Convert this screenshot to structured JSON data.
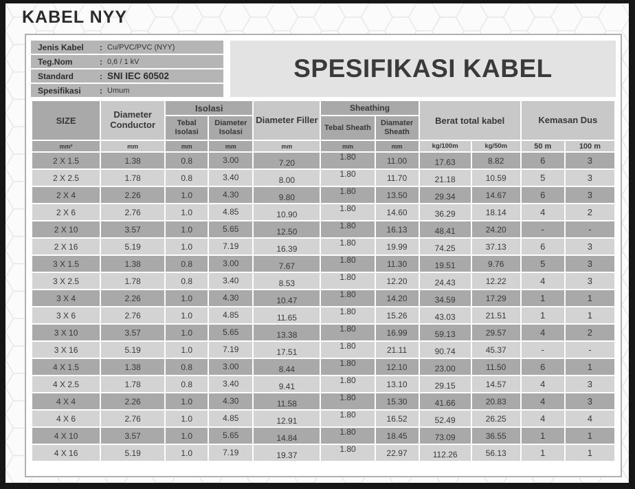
{
  "page": {
    "title": "KABEL NYY"
  },
  "header": {
    "info": [
      {
        "label": "Jenis Kabel",
        "colon": ":",
        "value": "Cu/PVC/PVC (NYY)"
      },
      {
        "label": "Teg.Nom",
        "colon": ":",
        "value": "0,6 / 1 kV"
      },
      {
        "label": "Standard",
        "colon": ":",
        "value": "SNI IEC 60502"
      },
      {
        "label": "Spesifikasi",
        "colon": ":",
        "value": "Umum"
      }
    ],
    "banner": "SPESIFIKASI KABEL"
  },
  "colors": {
    "row_dark": "#a9a9a9",
    "row_light": "#d3d3d3",
    "header_light": "#c8c8c8",
    "info_bar": "#b5b5b5",
    "banner_bg": "#e3e3e3",
    "frame": "#161616"
  },
  "table": {
    "header": {
      "size": "SIZE",
      "diameter_conductor": "Diameter Conductor",
      "isolasi_group": "Isolasi",
      "tebal_isolasi": "Tebal Isolasi",
      "diameter_isolasi": "Diameter Isolasi",
      "diameter_filler": "Diameter Filler",
      "sheathing_group": "Sheathing",
      "tebal_sheath": "Tebal Sheath",
      "diamater_sheath": "Diamater Sheath",
      "berat_total": "Berat total kabel",
      "kemasan_dus": "Kemasan Dus"
    },
    "units": [
      "mm²",
      "mm",
      "mm",
      "mm",
      "mm",
      "mm",
      "mm",
      "kg/100m",
      "kg/50m",
      "50 m",
      "100 m"
    ],
    "rows": [
      [
        "2 X 1.5",
        "1.38",
        "0.8",
        "3.00",
        "7.20",
        "1.80",
        "11.00",
        "17.63",
        "8.82",
        "6",
        "3"
      ],
      [
        "2 X 2.5",
        "1.78",
        "0.8",
        "3.40",
        "8.00",
        "1.80",
        "11.70",
        "21.18",
        "10.59",
        "5",
        "3"
      ],
      [
        "2 X 4",
        "2.26",
        "1.0",
        "4.30",
        "9.80",
        "1.80",
        "13.50",
        "29.34",
        "14.67",
        "6",
        "3"
      ],
      [
        "2 X 6",
        "2.76",
        "1.0",
        "4.85",
        "10.90",
        "1.80",
        "14.60",
        "36.29",
        "18.14",
        "4",
        "2"
      ],
      [
        "2 X 10",
        "3.57",
        "1.0",
        "5.65",
        "12.50",
        "1.80",
        "16.13",
        "48.41",
        "24.20",
        "-",
        "-"
      ],
      [
        "2 X 16",
        "5.19",
        "1.0",
        "7.19",
        "16.39",
        "1.80",
        "19.99",
        "74.25",
        "37.13",
        "6",
        "3"
      ],
      [
        "3 X 1.5",
        "1.38",
        "0.8",
        "3.00",
        "7.67",
        "1.80",
        "11.30",
        "19.51",
        "9.76",
        "5",
        "3"
      ],
      [
        "3 X 2.5",
        "1.78",
        "0.8",
        "3.40",
        "8.53",
        "1.80",
        "12.20",
        "24.43",
        "12.22",
        "4",
        "3"
      ],
      [
        "3 X 4",
        "2.26",
        "1.0",
        "4.30",
        "10.47",
        "1.80",
        "14.20",
        "34.59",
        "17.29",
        "1",
        "1"
      ],
      [
        "3 X 6",
        "2.76",
        "1.0",
        "4.85",
        "11.65",
        "1.80",
        "15.26",
        "43.03",
        "21.51",
        "1",
        "1"
      ],
      [
        "3 X 10",
        "3.57",
        "1.0",
        "5.65",
        "13.38",
        "1.80",
        "16.99",
        "59.13",
        "29.57",
        "4",
        "2"
      ],
      [
        "3 X 16",
        "5.19",
        "1.0",
        "7.19",
        "17.51",
        "1.80",
        "21.11",
        "90.74",
        "45.37",
        "-",
        "-"
      ],
      [
        "4 X 1.5",
        "1.38",
        "0.8",
        "3.00",
        "8.44",
        "1.80",
        "12.10",
        "23.00",
        "11.50",
        "6",
        "1"
      ],
      [
        "4 X 2.5",
        "1.78",
        "0.8",
        "3.40",
        "9.41",
        "1.80",
        "13.10",
        "29.15",
        "14.57",
        "4",
        "3"
      ],
      [
        "4 X 4",
        "2.26",
        "1.0",
        "4.30",
        "11.58",
        "1.80",
        "15.30",
        "41.66",
        "20.83",
        "4",
        "3"
      ],
      [
        "4 X 6",
        "2.76",
        "1.0",
        "4.85",
        "12.91",
        "1.80",
        "16.52",
        "52.49",
        "26.25",
        "4",
        "4"
      ],
      [
        "4 X 10",
        "3.57",
        "1.0",
        "5.65",
        "14.84",
        "1.80",
        "18.45",
        "73.09",
        "36.55",
        "1",
        "1"
      ],
      [
        "4 X 16",
        "5.19",
        "1.0",
        "7.19",
        "19.37",
        "1.80",
        "22.97",
        "112.26",
        "56.13",
        "1",
        "1"
      ]
    ]
  }
}
